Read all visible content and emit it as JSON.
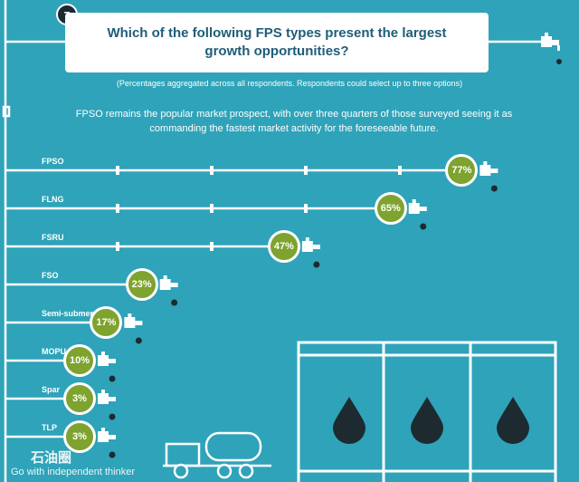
{
  "question_number": "7",
  "title": "Which of the following FPS types present the largest growth opportunities?",
  "note": "(Percentages aggregated across all respondents. Respondents could select up to three options)",
  "intro": "FPSO remains the popular market prospect, with over three quarters of those surveyed seeing it as commanding the fastest market activity for the foreseeable future.",
  "watermark": {
    "cn": "石油圈",
    "en": "Go with independent thinker"
  },
  "colors": {
    "background": "#2fa3b9",
    "bubble": "#7ea32e",
    "drop": "#1d2a30",
    "pipe": "#ffffff"
  },
  "chart_data": {
    "type": "bar",
    "title": "Which of the following FPS types present the largest growth opportunities?",
    "categories": [
      "FPSO",
      "FLNG",
      "FSRU",
      "FSO",
      "Semi-submersible",
      "MOPU",
      "Spar",
      "TLP"
    ],
    "values": [
      77,
      65,
      47,
      23,
      17,
      10,
      3,
      3
    ],
    "value_labels": [
      "77%",
      "65%",
      "47%",
      "23%",
      "17%",
      "10%",
      "3%",
      "3%"
    ],
    "unit": "%",
    "ylim": [
      0,
      100
    ]
  }
}
